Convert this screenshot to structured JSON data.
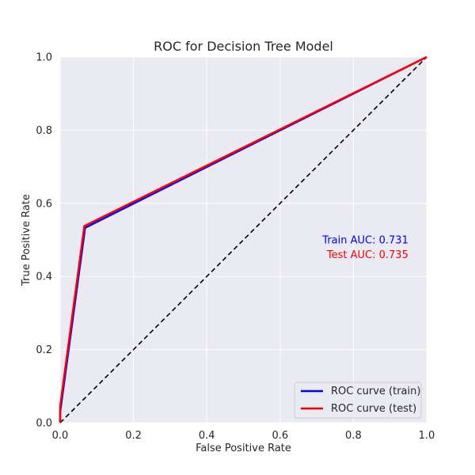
{
  "chart_data": {
    "type": "line",
    "title": "ROC for Decision Tree Model",
    "xlabel": "False Positive Rate",
    "ylabel": "True Positive Rate",
    "xlim": [
      0.0,
      1.0
    ],
    "ylim": [
      0.0,
      1.0
    ],
    "x_ticks": [
      "0.0",
      "0.2",
      "0.4",
      "0.6",
      "0.8",
      "1.0"
    ],
    "y_ticks": [
      "0.0",
      "0.2",
      "0.4",
      "0.6",
      "0.8",
      "1.0"
    ],
    "grid": true,
    "background": "#eaeaf2",
    "series": [
      {
        "name": "ROC curve (train)",
        "color": "#0000ff",
        "x": [
          0.0,
          0.0,
          0.068,
          1.0
        ],
        "y": [
          0.0,
          0.03,
          0.533,
          1.0
        ]
      },
      {
        "name": "ROC curve (test)",
        "color": "#ff0000",
        "x": [
          0.0,
          0.0,
          0.066,
          1.0
        ],
        "y": [
          0.0,
          0.045,
          0.538,
          1.0
        ]
      }
    ],
    "diagonal": {
      "x": [
        0.0,
        1.0
      ],
      "y": [
        0.0,
        1.0
      ],
      "color": "#000000",
      "style": "dashed"
    },
    "annotations": [
      {
        "text": "Train AUC: 0.731",
        "color": "#0000ff",
        "x": 0.95,
        "y": 0.5
      },
      {
        "text": "Test AUC: 0.735",
        "color": "#ff0000",
        "x": 0.95,
        "y": 0.46
      }
    ],
    "legend": {
      "placement": "lower-right",
      "entries": [
        "ROC curve (train)",
        "ROC curve (test)"
      ]
    }
  }
}
